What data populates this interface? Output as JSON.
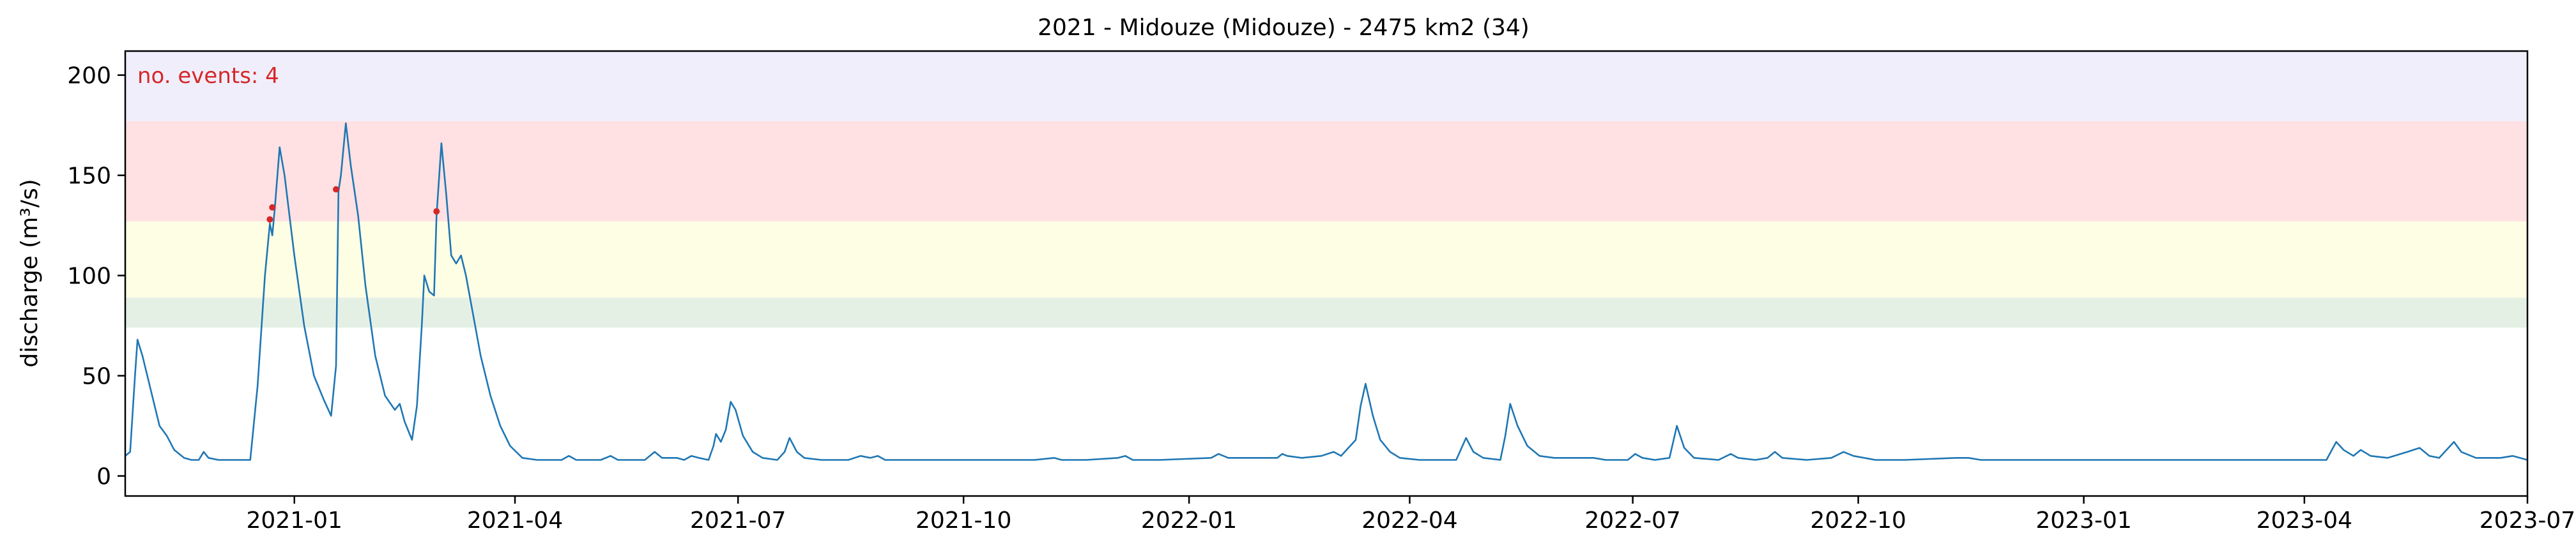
{
  "chart_data": {
    "type": "line",
    "title": "2021 - Midouze (Midouze) - 2475 km2 (34)",
    "xlabel": "",
    "ylabel": "discharge (m³/s)",
    "annotation": "no. events: 4",
    "xlim": [
      "2020-10-24",
      "2023-07-01"
    ],
    "ylim": [
      -10,
      212
    ],
    "x_ticks": [
      {
        "date": "2021-01-01",
        "label": "2021-01"
      },
      {
        "date": "2021-04-01",
        "label": "2021-04"
      },
      {
        "date": "2021-07-01",
        "label": "2021-07"
      },
      {
        "date": "2021-10-01",
        "label": "2021-10"
      },
      {
        "date": "2022-01-01",
        "label": "2022-01"
      },
      {
        "date": "2022-04-01",
        "label": "2022-04"
      },
      {
        "date": "2022-07-01",
        "label": "2022-07"
      },
      {
        "date": "2022-10-01",
        "label": "2022-10"
      },
      {
        "date": "2023-01-01",
        "label": "2023-01"
      },
      {
        "date": "2023-04-01",
        "label": "2023-04"
      },
      {
        "date": "2023-07-01",
        "label": "2023-07"
      }
    ],
    "y_ticks": [
      0,
      50,
      100,
      150,
      200
    ],
    "threshold_bands": [
      {
        "from": 74,
        "to": 89,
        "color": "#e5f0e5"
      },
      {
        "from": 89,
        "to": 127,
        "color": "#fefee5"
      },
      {
        "from": 127,
        "to": 177,
        "color": "#ffe1e3"
      },
      {
        "from": 177,
        "to": 212,
        "color": "#f0eefb"
      }
    ],
    "series": [
      {
        "color": "#1f77b4",
        "points": [
          [
            "2020-10-24",
            10
          ],
          [
            "2020-10-26",
            12
          ],
          [
            "2020-10-28",
            50
          ],
          [
            "2020-10-29",
            68
          ],
          [
            "2020-10-31",
            60
          ],
          [
            "2020-11-04",
            40
          ],
          [
            "2020-11-07",
            25
          ],
          [
            "2020-11-10",
            20
          ],
          [
            "2020-11-13",
            13
          ],
          [
            "2020-11-17",
            9
          ],
          [
            "2020-11-20",
            8
          ],
          [
            "2020-11-23",
            8
          ],
          [
            "2020-11-25",
            12
          ],
          [
            "2020-11-27",
            9
          ],
          [
            "2020-12-01",
            8
          ],
          [
            "2020-12-10",
            8
          ],
          [
            "2020-12-14",
            8
          ],
          [
            "2020-12-17",
            45
          ],
          [
            "2020-12-20",
            100
          ],
          [
            "2020-12-22",
            126
          ],
          [
            "2020-12-23",
            120
          ],
          [
            "2020-12-24",
            133
          ],
          [
            "2020-12-26",
            164
          ],
          [
            "2020-12-28",
            150
          ],
          [
            "2021-01-01",
            110
          ],
          [
            "2021-01-05",
            75
          ],
          [
            "2021-01-09",
            50
          ],
          [
            "2021-01-13",
            38
          ],
          [
            "2021-01-16",
            30
          ],
          [
            "2021-01-18",
            55
          ],
          [
            "2021-01-19",
            142
          ],
          [
            "2021-01-20",
            150
          ],
          [
            "2021-01-22",
            176
          ],
          [
            "2021-01-24",
            155
          ],
          [
            "2021-01-27",
            130
          ],
          [
            "2021-01-30",
            95
          ],
          [
            "2021-02-03",
            60
          ],
          [
            "2021-02-07",
            40
          ],
          [
            "2021-02-11",
            33
          ],
          [
            "2021-02-13",
            36
          ],
          [
            "2021-02-15",
            27
          ],
          [
            "2021-02-18",
            18
          ],
          [
            "2021-02-20",
            35
          ],
          [
            "2021-02-22",
            75
          ],
          [
            "2021-02-23",
            100
          ],
          [
            "2021-02-25",
            92
          ],
          [
            "2021-02-27",
            90
          ],
          [
            "2021-02-28",
            130
          ],
          [
            "2021-03-02",
            166
          ],
          [
            "2021-03-04",
            140
          ],
          [
            "2021-03-06",
            110
          ],
          [
            "2021-03-08",
            106
          ],
          [
            "2021-03-10",
            110
          ],
          [
            "2021-03-12",
            100
          ],
          [
            "2021-03-15",
            80
          ],
          [
            "2021-03-18",
            60
          ],
          [
            "2021-03-22",
            40
          ],
          [
            "2021-03-26",
            25
          ],
          [
            "2021-03-30",
            15
          ],
          [
            "2021-04-04",
            9
          ],
          [
            "2021-04-10",
            8
          ],
          [
            "2021-04-20",
            8
          ],
          [
            "2021-04-23",
            10
          ],
          [
            "2021-04-26",
            8
          ],
          [
            "2021-05-06",
            8
          ],
          [
            "2021-05-10",
            10
          ],
          [
            "2021-05-13",
            8
          ],
          [
            "2021-05-24",
            8
          ],
          [
            "2021-05-28",
            12
          ],
          [
            "2021-05-31",
            9
          ],
          [
            "2021-06-06",
            9
          ],
          [
            "2021-06-09",
            8
          ],
          [
            "2021-06-12",
            10
          ],
          [
            "2021-06-15",
            9
          ],
          [
            "2021-06-19",
            8
          ],
          [
            "2021-06-21",
            15
          ],
          [
            "2021-06-22",
            21
          ],
          [
            "2021-06-24",
            17
          ],
          [
            "2021-06-26",
            23
          ],
          [
            "2021-06-28",
            37
          ],
          [
            "2021-06-30",
            33
          ],
          [
            "2021-07-03",
            20
          ],
          [
            "2021-07-07",
            12
          ],
          [
            "2021-07-11",
            9
          ],
          [
            "2021-07-17",
            8
          ],
          [
            "2021-07-20",
            12
          ],
          [
            "2021-07-22",
            19
          ],
          [
            "2021-07-25",
            12
          ],
          [
            "2021-07-28",
            9
          ],
          [
            "2021-08-04",
            8
          ],
          [
            "2021-08-15",
            8
          ],
          [
            "2021-08-20",
            10
          ],
          [
            "2021-08-24",
            9
          ],
          [
            "2021-08-27",
            10
          ],
          [
            "2021-08-30",
            8
          ],
          [
            "2021-09-05",
            8
          ],
          [
            "2021-09-20",
            8
          ],
          [
            "2021-10-01",
            8
          ],
          [
            "2021-10-10",
            8
          ],
          [
            "2021-10-15",
            8
          ],
          [
            "2021-10-30",
            8
          ],
          [
            "2021-11-07",
            9
          ],
          [
            "2021-11-10",
            8
          ],
          [
            "2021-11-20",
            8
          ],
          [
            "2021-12-03",
            9
          ],
          [
            "2021-12-06",
            10
          ],
          [
            "2021-12-09",
            8
          ],
          [
            "2021-12-20",
            8
          ],
          [
            "2022-01-10",
            9
          ],
          [
            "2022-01-13",
            11
          ],
          [
            "2022-01-17",
            9
          ],
          [
            "2022-02-06",
            9
          ],
          [
            "2022-02-08",
            11
          ],
          [
            "2022-02-10",
            10
          ],
          [
            "2022-02-16",
            9
          ],
          [
            "2022-02-24",
            10
          ],
          [
            "2022-03-01",
            12
          ],
          [
            "2022-03-04",
            10
          ],
          [
            "2022-03-07",
            14
          ],
          [
            "2022-03-10",
            18
          ],
          [
            "2022-03-12",
            35
          ],
          [
            "2022-03-14",
            46
          ],
          [
            "2022-03-17",
            30
          ],
          [
            "2022-03-20",
            18
          ],
          [
            "2022-03-24",
            12
          ],
          [
            "2022-03-28",
            9
          ],
          [
            "2022-04-05",
            8
          ],
          [
            "2022-04-20",
            8
          ],
          [
            "2022-04-24",
            19
          ],
          [
            "2022-04-27",
            12
          ],
          [
            "2022-05-01",
            9
          ],
          [
            "2022-05-08",
            8
          ],
          [
            "2022-05-10",
            20
          ],
          [
            "2022-05-12",
            36
          ],
          [
            "2022-05-15",
            25
          ],
          [
            "2022-05-19",
            15
          ],
          [
            "2022-05-24",
            10
          ],
          [
            "2022-05-30",
            9
          ],
          [
            "2022-06-10",
            9
          ],
          [
            "2022-06-15",
            9
          ],
          [
            "2022-06-20",
            8
          ],
          [
            "2022-06-29",
            8
          ],
          [
            "2022-07-02",
            11
          ],
          [
            "2022-07-05",
            9
          ],
          [
            "2022-07-10",
            8
          ],
          [
            "2022-07-16",
            9
          ],
          [
            "2022-07-19",
            25
          ],
          [
            "2022-07-22",
            14
          ],
          [
            "2022-07-26",
            9
          ],
          [
            "2022-08-05",
            8
          ],
          [
            "2022-08-10",
            11
          ],
          [
            "2022-08-13",
            9
          ],
          [
            "2022-08-20",
            8
          ],
          [
            "2022-08-25",
            9
          ],
          [
            "2022-08-28",
            12
          ],
          [
            "2022-08-31",
            9
          ],
          [
            "2022-09-10",
            8
          ],
          [
            "2022-09-20",
            9
          ],
          [
            "2022-09-25",
            12
          ],
          [
            "2022-09-29",
            10
          ],
          [
            "2022-10-08",
            8
          ],
          [
            "2022-10-20",
            8
          ],
          [
            "2022-11-10",
            9
          ],
          [
            "2022-11-15",
            9
          ],
          [
            "2022-11-20",
            8
          ],
          [
            "2022-12-01",
            8
          ],
          [
            "2022-12-15",
            8
          ],
          [
            "2023-01-10",
            8
          ],
          [
            "2023-01-20",
            8
          ],
          [
            "2023-02-05",
            8
          ],
          [
            "2023-02-15",
            8
          ],
          [
            "2023-03-01",
            8
          ],
          [
            "2023-03-20",
            8
          ],
          [
            "2023-04-10",
            8
          ],
          [
            "2023-04-14",
            17
          ],
          [
            "2023-04-17",
            13
          ],
          [
            "2023-04-21",
            10
          ],
          [
            "2023-04-24",
            13
          ],
          [
            "2023-04-28",
            10
          ],
          [
            "2023-05-05",
            9
          ],
          [
            "2023-05-13",
            12
          ],
          [
            "2023-05-18",
            14
          ],
          [
            "2023-05-22",
            10
          ],
          [
            "2023-05-26",
            9
          ],
          [
            "2023-06-01",
            17
          ],
          [
            "2023-06-04",
            12
          ],
          [
            "2023-06-10",
            9
          ],
          [
            "2023-06-20",
            9
          ],
          [
            "2023-06-25",
            10
          ],
          [
            "2023-07-01",
            8
          ]
        ]
      }
    ],
    "events": [
      {
        "date": "2020-12-22",
        "value": 128
      },
      {
        "date": "2020-12-23",
        "value": 134
      },
      {
        "date": "2021-01-18",
        "value": 143
      },
      {
        "date": "2021-02-28",
        "value": 132
      }
    ]
  }
}
